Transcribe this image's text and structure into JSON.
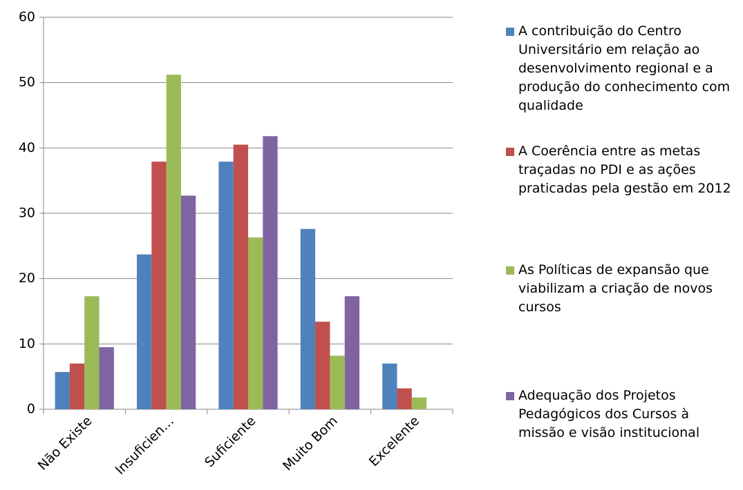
{
  "chart_data": {
    "type": "bar",
    "categories": [
      "Não Existe",
      "Insuficien…",
      "Suficiente",
      "Muito Bom",
      "Excelente"
    ],
    "series": [
      {
        "name": "A contribuição do Centro Universitário em relação ao desenvolvimento regional e a produção do conhecimento com qualidade",
        "color": "#4f81bd",
        "values": [
          5.7,
          23.7,
          37.9,
          27.6,
          7.0
        ]
      },
      {
        "name": "A Coerência entre as metas traçadas no PDI e as ações praticadas pela gestão em 2012",
        "color": "#c0504d",
        "values": [
          7.0,
          37.9,
          40.5,
          13.4,
          3.2
        ]
      },
      {
        "name": "As Políticas de expansão que viabilizam a criação de novos cursos",
        "color": "#9bbb59",
        "values": [
          17.3,
          51.2,
          26.3,
          8.2,
          1.8
        ]
      },
      {
        "name": "Adequação dos Projetos Pedagógicos dos Cursos à missão e visão institucional",
        "color": "#8064a2",
        "values": [
          9.5,
          32.7,
          41.8,
          17.3,
          0
        ]
      }
    ],
    "ylim": [
      0,
      60
    ],
    "yticks": [
      0,
      10,
      20,
      30,
      40,
      50,
      60
    ],
    "grid": true,
    "legend": "right"
  }
}
